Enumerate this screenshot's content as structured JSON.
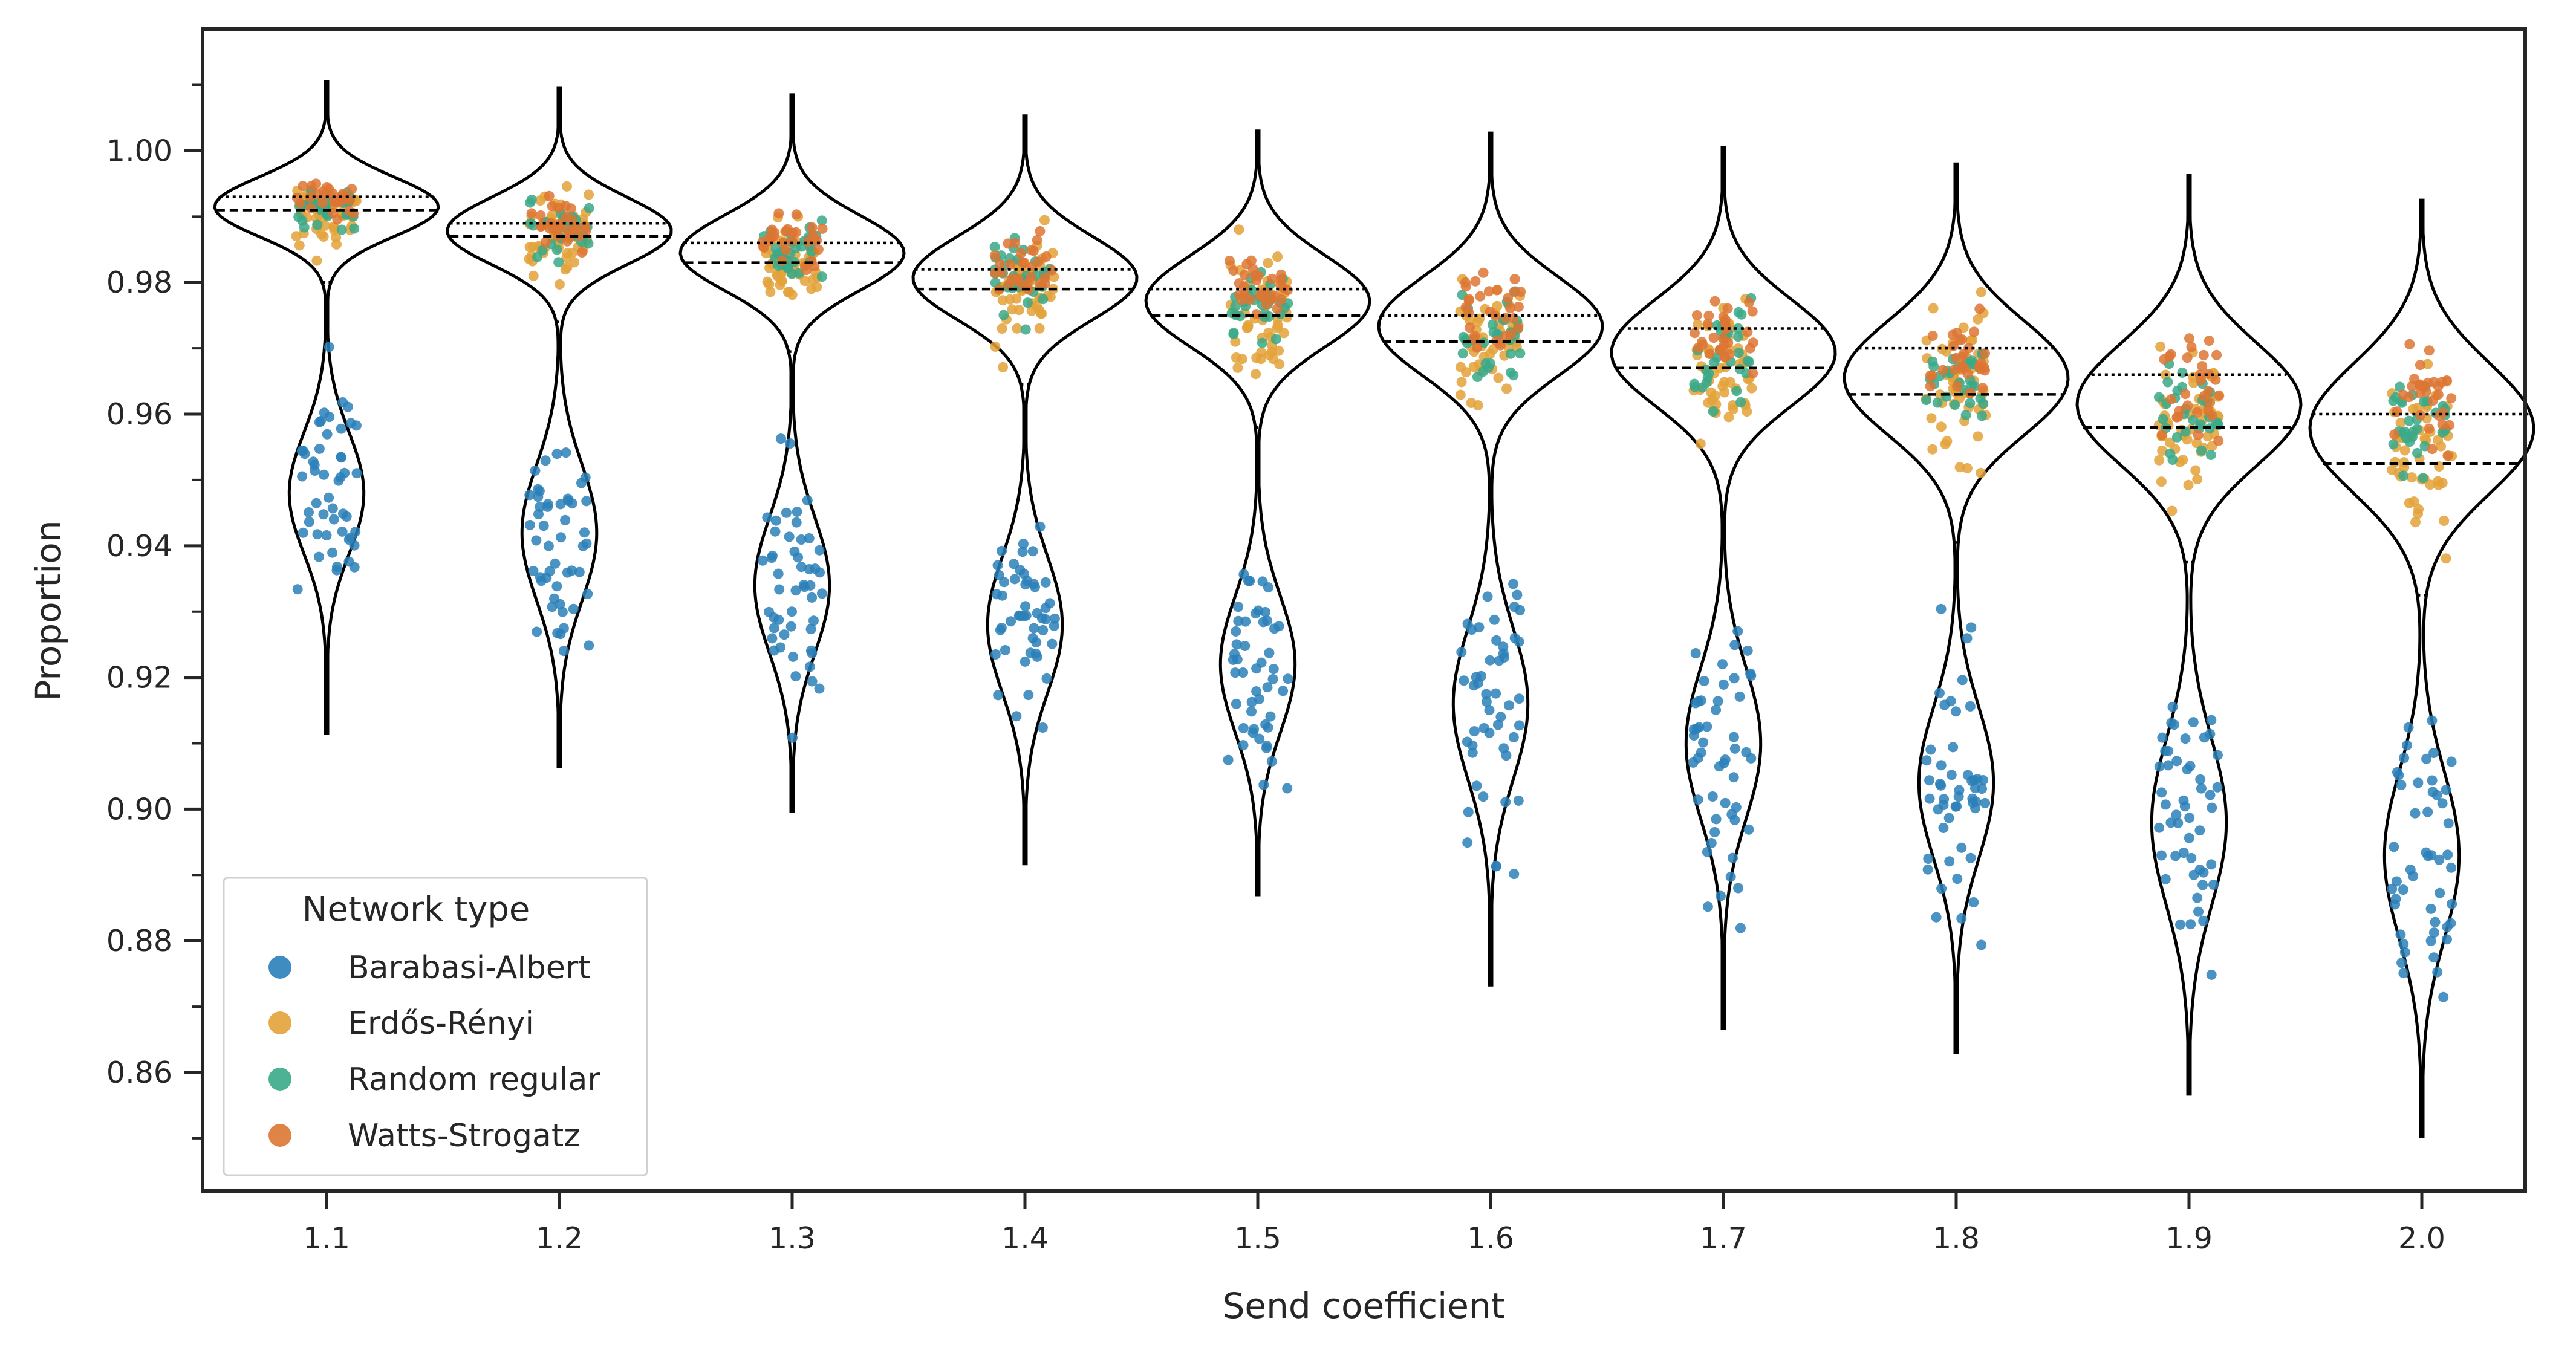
{
  "chart_data": {
    "type": "violin",
    "xlabel": "Send coefficient",
    "ylabel": "Proportion",
    "categories": [
      "1.1",
      "1.2",
      "1.3",
      "1.4",
      "1.5",
      "1.6",
      "1.7",
      "1.8",
      "1.9",
      "2.0"
    ],
    "ylim": [
      0.842,
      1.0185
    ],
    "yticks": [
      {
        "value": 0.86,
        "label": "0.86"
      },
      {
        "value": 0.88,
        "label": "0.88"
      },
      {
        "value": 0.9,
        "label": "0.90"
      },
      {
        "value": 0.92,
        "label": "0.92"
      },
      {
        "value": 0.94,
        "label": "0.94"
      },
      {
        "value": 0.96,
        "label": "0.96"
      },
      {
        "value": 0.98,
        "label": "0.98"
      },
      {
        "value": 1.0,
        "label": "1.00"
      }
    ],
    "yminor_ticks": [
      0.85,
      0.87,
      0.89,
      0.91,
      0.93,
      0.95,
      0.97,
      0.99,
      1.01
    ],
    "grid": false,
    "legend": {
      "title": "Network type",
      "placement": "lower-left",
      "entries": [
        "Barabasi-Albert",
        "Erdős-Rényi",
        "Random regular",
        "Watts-Strogatz"
      ]
    },
    "series": [
      {
        "name": "Barabasi-Albert",
        "color": "#2a80b9",
        "center": [
          0.948,
          0.942,
          0.934,
          0.928,
          0.922,
          0.916,
          0.91,
          0.904,
          0.898,
          0.893
        ],
        "spread": [
          0.008,
          0.009,
          0.009,
          0.009,
          0.009,
          0.01,
          0.01,
          0.01,
          0.011,
          0.011
        ]
      },
      {
        "name": "Erdős-Rényi",
        "color": "#e3a23a",
        "center": [
          0.9905,
          0.9865,
          0.9825,
          0.9785,
          0.9745,
          0.9705,
          0.9665,
          0.9625,
          0.9585,
          0.9545
        ],
        "spread": [
          0.0025,
          0.003,
          0.0035,
          0.004,
          0.0045,
          0.005,
          0.005,
          0.0055,
          0.0055,
          0.006
        ]
      },
      {
        "name": "Random regular",
        "color": "#3aa987",
        "center": [
          0.9915,
          0.988,
          0.9845,
          0.9805,
          0.977,
          0.973,
          0.969,
          0.965,
          0.961,
          0.958
        ],
        "spread": [
          0.0015,
          0.002,
          0.0025,
          0.003,
          0.003,
          0.0035,
          0.0035,
          0.004,
          0.004,
          0.004
        ]
      },
      {
        "name": "Watts-Strogatz",
        "color": "#dd7632",
        "center": [
          0.9925,
          0.989,
          0.9865,
          0.983,
          0.98,
          0.9765,
          0.9725,
          0.969,
          0.965,
          0.961
        ],
        "spread": [
          0.0015,
          0.002,
          0.0025,
          0.0025,
          0.003,
          0.003,
          0.0035,
          0.0035,
          0.004,
          0.004
        ]
      }
    ],
    "violins": [
      {
        "category": "1.1",
        "min": 0.9115,
        "max": 1.0105,
        "q1": 0.98,
        "median": 0.991,
        "q3": 0.993
      },
      {
        "category": "1.2",
        "min": 0.9065,
        "max": 1.0095,
        "q1": 0.974,
        "median": 0.987,
        "q3": 0.989
      },
      {
        "category": "1.3",
        "min": 0.8997,
        "max": 1.0085,
        "q1": 0.9695,
        "median": 0.983,
        "q3": 0.986
      },
      {
        "category": "1.4",
        "min": 0.8917,
        "max": 1.0053,
        "q1": 0.9645,
        "median": 0.979,
        "q3": 0.982
      },
      {
        "category": "1.5",
        "min": 0.887,
        "max": 1.003,
        "q1": 0.958,
        "median": 0.975,
        "q3": 0.979
      },
      {
        "category": "1.6",
        "min": 0.8733,
        "max": 1.0027,
        "q1": 0.949,
        "median": 0.971,
        "q3": 0.975
      },
      {
        "category": "1.7",
        "min": 0.8667,
        "max": 1.0005,
        "q1": 0.945,
        "median": 0.967,
        "q3": 0.973
      },
      {
        "category": "1.8",
        "min": 0.863,
        "max": 0.998,
        "q1": 0.9405,
        "median": 0.963,
        "q3": 0.97
      },
      {
        "category": "1.9",
        "min": 0.8567,
        "max": 0.9963,
        "q1": 0.9375,
        "median": 0.958,
        "q3": 0.966
      },
      {
        "category": "2.0",
        "min": 0.8503,
        "max": 0.9925,
        "q1": 0.9325,
        "median": 0.9525,
        "q3": 0.96
      }
    ]
  }
}
